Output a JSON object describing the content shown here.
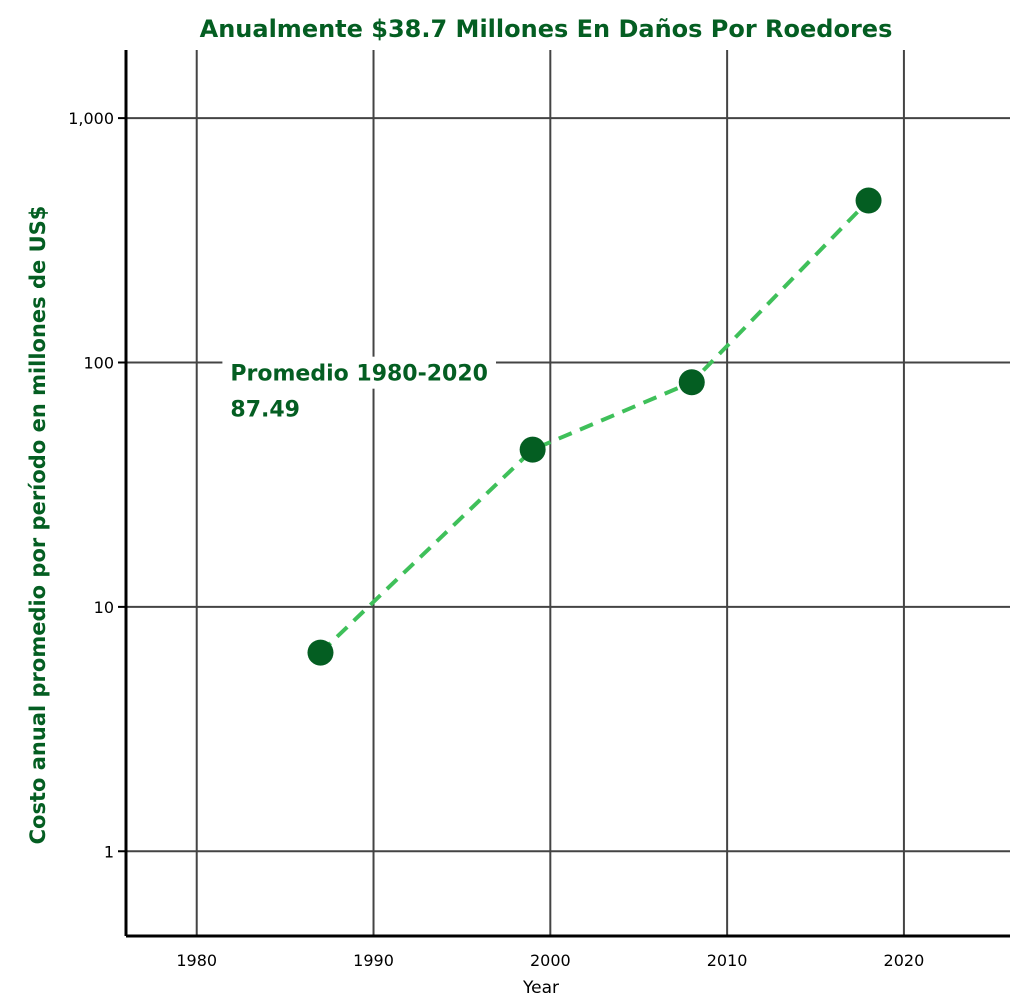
{
  "theme": {
    "accent_dark": "#045e22",
    "line_light": "#3fc05a",
    "grid": "#444444",
    "axis": "#000000"
  },
  "chart_data": {
    "type": "line",
    "title": "Anualmente $38.7 Millones En Daños Por Roedores",
    "xlabel": "Year",
    "ylabel": "Costo anual promedio por período en millones de US$",
    "yscale": "log",
    "xlim": [
      1976,
      2026
    ],
    "ylim": [
      0.45,
      1900
    ],
    "x_ticks": [
      1980,
      1990,
      2000,
      2010,
      2020
    ],
    "x_tick_labels": [
      "1980",
      "1990",
      "2000",
      "2010",
      "2020"
    ],
    "y_ticks": [
      1,
      10,
      100,
      1000
    ],
    "y_tick_labels": [
      "1",
      "10",
      "100",
      "1,000"
    ],
    "grid": true,
    "series": [
      {
        "x": [
          1987,
          1999,
          2008,
          2018
        ],
        "y": [
          6.5,
          44,
          83,
          460
        ],
        "line_style": "dashed",
        "line_color": "#3fc05a",
        "marker_color": "#045e22"
      }
    ],
    "annotation": {
      "line1": "Promedio 1980-2020",
      "line2": "87.49",
      "anchor": [
        1981,
        87.49
      ]
    }
  }
}
